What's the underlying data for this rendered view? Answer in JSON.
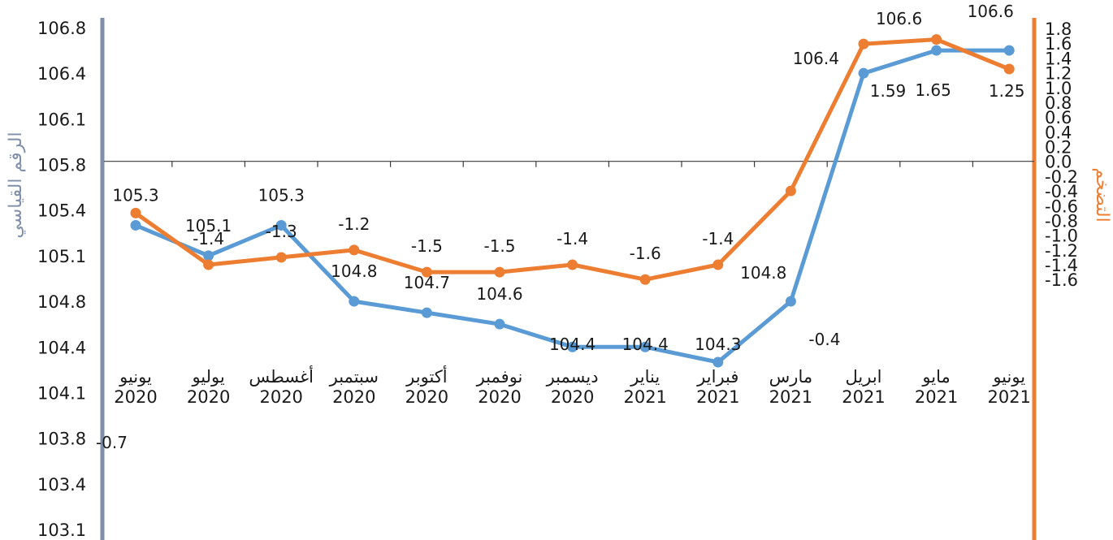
{
  "chart_data": {
    "type": "line",
    "categories": [
      [
        "يونيو",
        "2020"
      ],
      [
        "يوليو",
        "2020"
      ],
      [
        "أغسطس",
        "2020"
      ],
      [
        "سبتمبر",
        "2020"
      ],
      [
        "أكتوبر",
        "2020"
      ],
      [
        "نوفمبر",
        "2020"
      ],
      [
        "ديسمبر",
        "2020"
      ],
      [
        "يناير",
        "2021"
      ],
      [
        "فبراير",
        "2021"
      ],
      [
        "مارس",
        "2021"
      ],
      [
        "ابريل",
        "2021"
      ],
      [
        "مايو",
        "2021"
      ],
      [
        "يونيو",
        "2021"
      ]
    ],
    "series": [
      {
        "name": "الرقم القياسي",
        "axis": "left",
        "color": "#5b9bd5",
        "values": [
          105.3,
          105.1,
          105.3,
          104.8,
          104.7,
          104.6,
          104.4,
          104.4,
          104.3,
          104.8,
          106.4,
          106.6,
          106.6
        ],
        "labels": [
          "105.3",
          "105.1",
          "105.3",
          "104.8",
          "104.7",
          "104.6",
          "104.4",
          "104.4",
          "104.3",
          "104.8",
          "106.4",
          "106.6",
          "106.6"
        ]
      },
      {
        "name": "التضخم",
        "axis": "right",
        "color": "#ed7d31",
        "values": [
          -0.7,
          -1.4,
          -1.3,
          -1.2,
          -1.5,
          -1.5,
          -1.4,
          -1.6,
          -1.4,
          -0.4,
          1.59,
          1.65,
          1.25
        ],
        "labels": [
          "-0.7",
          "-1.4",
          "-1.3",
          "-1.2",
          "-1.5",
          "-1.5",
          "-1.4",
          "-1.6",
          "-1.4",
          "-0.4",
          "1.59",
          "1.65",
          "1.25"
        ]
      }
    ],
    "y_left": {
      "label": "الرقم القياسي",
      "ticks": [
        "106.8",
        "106.4",
        "106.1",
        "105.8",
        "105.4",
        "105.1",
        "104.8",
        "104.4",
        "104.1",
        "103.8",
        "103.4",
        "103.1"
      ],
      "range": [
        103.1,
        106.8
      ],
      "axis_color": "#7f8fa9"
    },
    "y_right": {
      "label": "التضخم",
      "ticks": [
        "1.8",
        "1.6",
        "1.4",
        "1.2",
        "1.0",
        "0.8",
        "0.6",
        "0.4",
        "0.2",
        "0.0",
        "-0.2",
        "-0.4",
        "-0.6",
        "-0.8",
        "-1.0",
        "-1.2",
        "-1.4",
        "-1.6"
      ],
      "range": [
        -1.6,
        1.8
      ],
      "axis_color": "#ed7d31"
    },
    "grid": false,
    "legend": "none"
  }
}
